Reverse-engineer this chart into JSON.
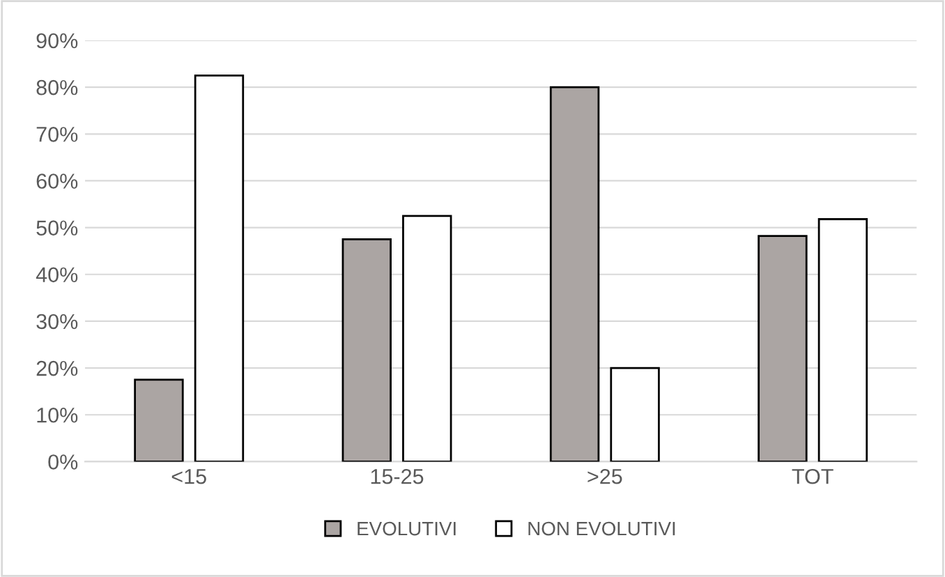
{
  "chart_data": {
    "type": "bar",
    "categories": [
      "<15",
      "15-25",
      ">25",
      "TOT"
    ],
    "series": [
      {
        "name": "EVOLUTIVI",
        "color": "#aba5a3",
        "values": [
          17.5,
          47.5,
          80,
          48.2
        ]
      },
      {
        "name": "NON EVOLUTIVI",
        "color": "#ffffff",
        "values": [
          82.5,
          52.5,
          20,
          51.8
        ]
      }
    ],
    "ylim": [
      0,
      90
    ],
    "yticks": [
      {
        "value": 0,
        "label": "0%"
      },
      {
        "value": 10,
        "label": "10%"
      },
      {
        "value": 20,
        "label": "20%"
      },
      {
        "value": 30,
        "label": "30%"
      },
      {
        "value": 40,
        "label": "40%"
      },
      {
        "value": 50,
        "label": "50%"
      },
      {
        "value": 60,
        "label": "60%"
      },
      {
        "value": 70,
        "label": "70%"
      },
      {
        "value": 80,
        "label": "80%"
      },
      {
        "value": 90,
        "label": "90%"
      }
    ],
    "grid": "y",
    "legend": "bottom"
  }
}
